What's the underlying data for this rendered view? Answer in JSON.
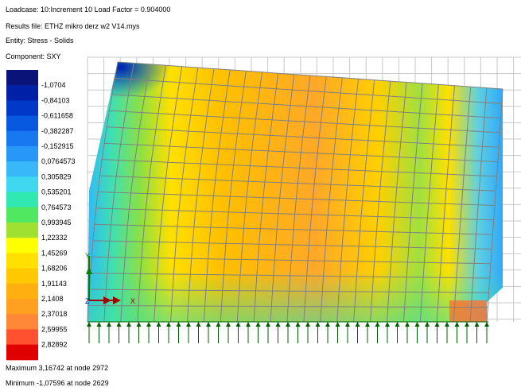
{
  "header": {
    "loadcase": "Loadcase: 10:Increment 10 Load Factor = 0.904000",
    "results_file": "Results file: ETHZ  mikro derz w2 V14.mys",
    "entity": "Entity: Stress - Solids",
    "component": "Component: SXY"
  },
  "legend": {
    "labels": [
      "-1,0704",
      "-0,84103",
      "-0,611658",
      "-0,382287",
      "-0,152915",
      "0,0764573",
      "0,305829",
      "0,535201",
      "0,764573",
      "0,993945",
      "1,22332",
      "1,45269",
      "1,68206",
      "1,91143",
      "2,1408",
      "2,37018",
      "2,59955",
      "2,82892"
    ]
  },
  "footer": {
    "maximum": "Maximum 3,16742 at node 2972",
    "minimum": "Minimum -1,07596 at node 2629"
  },
  "triad": {
    "y": "Y",
    "z": "Z",
    "x": "X"
  }
}
